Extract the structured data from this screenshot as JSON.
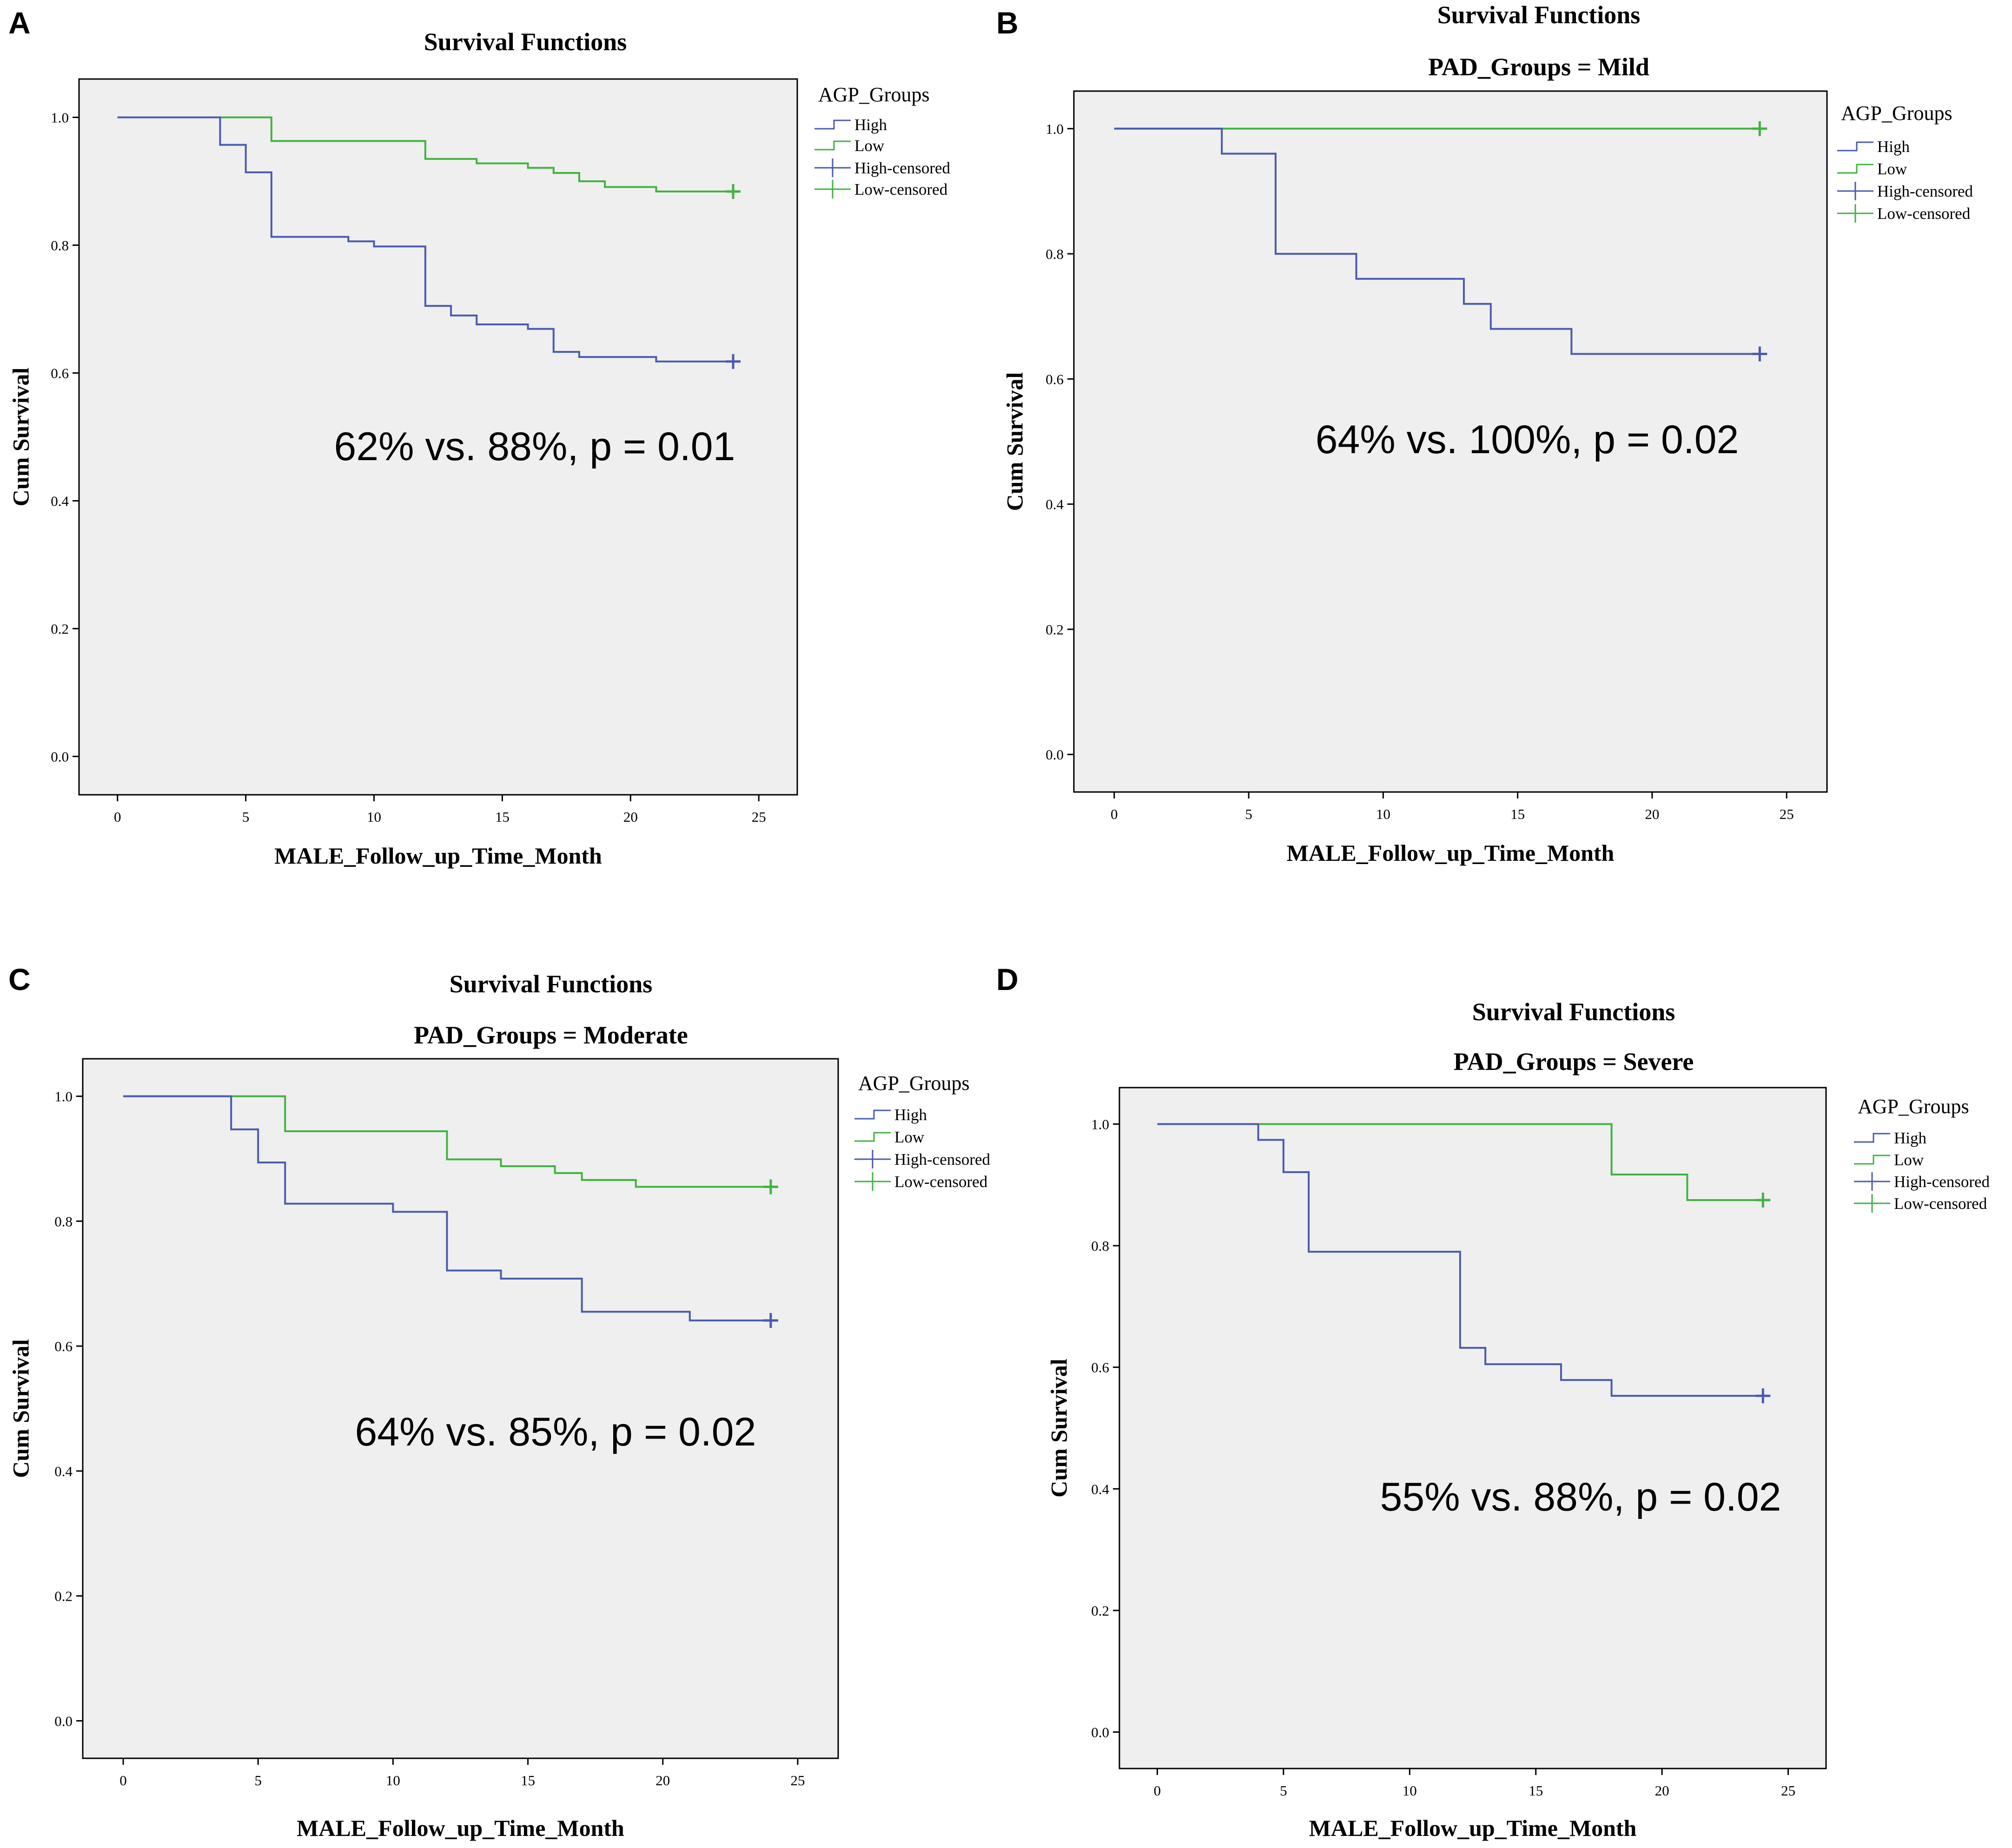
{
  "colors": {
    "high": "#4a5ab0",
    "low": "#3fb33f",
    "plot_bg": "#efefef",
    "axis": "#000000"
  },
  "chart_data": [
    {
      "panel": "A",
      "type": "line",
      "title": "Survival Functions",
      "subtitle": "",
      "xlabel": "MALE_Follow_up_Time_Month",
      "ylabel": "Cum Survival",
      "xlim": [
        -1.5,
        26.5
      ],
      "ylim": [
        -0.06,
        1.06
      ],
      "xticks": [
        "0",
        "5",
        "10",
        "15",
        "20",
        "25"
      ],
      "yticks": [
        "0.0",
        "0.2",
        "0.4",
        "0.6",
        "0.8",
        "1.0"
      ],
      "legend_title": "AGP_Groups",
      "legend": [
        "High",
        "Low",
        "High-censored",
        "Low-censored"
      ],
      "annotation": "62% vs. 88%, p = 0.01",
      "series": [
        {
          "name": "High",
          "color_key": "high",
          "steps": [
            [
              0,
              1.0
            ],
            [
              4,
              0.957
            ],
            [
              5,
              0.914
            ],
            [
              6,
              0.813
            ],
            [
              9,
              0.806
            ],
            [
              10,
              0.798
            ],
            [
              12,
              0.705
            ],
            [
              13,
              0.69
            ],
            [
              14,
              0.676
            ],
            [
              16,
              0.669
            ],
            [
              17,
              0.633
            ],
            [
              18,
              0.625
            ],
            [
              21,
              0.618
            ],
            [
              24,
              0.618
            ]
          ],
          "censor": [
            24,
            0.618
          ]
        },
        {
          "name": "Low",
          "color_key": "low",
          "steps": [
            [
              0,
              1.0
            ],
            [
              6,
              0.963
            ],
            [
              12,
              0.935
            ],
            [
              14,
              0.928
            ],
            [
              16,
              0.921
            ],
            [
              17,
              0.913
            ],
            [
              18,
              0.9
            ],
            [
              19,
              0.891
            ],
            [
              21,
              0.884
            ],
            [
              24,
              0.884
            ]
          ],
          "censor": [
            24,
            0.884
          ]
        }
      ]
    },
    {
      "panel": "B",
      "type": "line",
      "title": "Survival Functions",
      "subtitle": "PAD_Groups = Mild",
      "xlabel": "MALE_Follow_up_Time_Month",
      "ylabel": "Cum Survival",
      "xlim": [
        -1.5,
        26.5
      ],
      "ylim": [
        -0.06,
        1.06
      ],
      "xticks": [
        "0",
        "5",
        "10",
        "15",
        "20",
        "25"
      ],
      "yticks": [
        "0.0",
        "0.2",
        "0.4",
        "0.6",
        "0.8",
        "1.0"
      ],
      "legend_title": "AGP_Groups",
      "legend": [
        "High",
        "Low",
        "High-censored",
        "Low-censored"
      ],
      "annotation": "64% vs. 100%, p = 0.02",
      "series": [
        {
          "name": "High",
          "color_key": "high",
          "steps": [
            [
              0,
              1.0
            ],
            [
              4,
              0.96
            ],
            [
              6,
              0.8
            ],
            [
              9,
              0.76
            ],
            [
              13,
              0.72
            ],
            [
              14,
              0.68
            ],
            [
              17,
              0.64
            ],
            [
              24,
              0.64
            ]
          ],
          "censor": [
            24,
            0.64
          ]
        },
        {
          "name": "Low",
          "color_key": "low",
          "steps": [
            [
              0,
              1.0
            ],
            [
              24,
              1.0
            ]
          ],
          "censor": [
            24,
            1.0
          ]
        }
      ]
    },
    {
      "panel": "C",
      "type": "line",
      "title": "Survival Functions",
      "subtitle": "PAD_Groups = Moderate",
      "xlabel": "MALE_Follow_up_Time_Month",
      "ylabel": "Cum Survival",
      "xlim": [
        -1.5,
        26.5
      ],
      "ylim": [
        -0.06,
        1.06
      ],
      "xticks": [
        "0",
        "5",
        "10",
        "15",
        "20",
        "25"
      ],
      "yticks": [
        "0.0",
        "0.2",
        "0.4",
        "0.6",
        "0.8",
        "1.0"
      ],
      "legend_title": "AGP_Groups",
      "legend": [
        "High",
        "Low",
        "High-censored",
        "Low-censored"
      ],
      "annotation": "64% vs. 85%, p = 0.02",
      "series": [
        {
          "name": "High",
          "color_key": "high",
          "steps": [
            [
              0,
              1.0
            ],
            [
              4,
              0.947
            ],
            [
              5,
              0.894
            ],
            [
              6,
              0.828
            ],
            [
              10,
              0.815
            ],
            [
              12,
              0.721
            ],
            [
              14,
              0.708
            ],
            [
              17,
              0.655
            ],
            [
              21,
              0.641
            ],
            [
              24,
              0.641
            ]
          ],
          "censor": [
            24,
            0.641
          ]
        },
        {
          "name": "Low",
          "color_key": "low",
          "steps": [
            [
              0,
              1.0
            ],
            [
              6,
              0.944
            ],
            [
              12,
              0.899
            ],
            [
              14,
              0.888
            ],
            [
              16,
              0.877
            ],
            [
              17,
              0.866
            ],
            [
              19,
              0.855
            ],
            [
              24,
              0.855
            ]
          ],
          "censor": [
            24,
            0.855
          ]
        }
      ]
    },
    {
      "panel": "D",
      "type": "line",
      "title": "Survival Functions",
      "subtitle": "PAD_Groups = Severe",
      "xlabel": "MALE_Follow_up_Time_Month",
      "ylabel": "Cum Survival",
      "xlim": [
        -1.5,
        26.5
      ],
      "ylim": [
        -0.06,
        1.06
      ],
      "xticks": [
        "0",
        "5",
        "10",
        "15",
        "20",
        "25"
      ],
      "yticks": [
        "0.0",
        "0.2",
        "0.4",
        "0.6",
        "0.8",
        "1.0"
      ],
      "legend_title": "AGP_Groups",
      "legend": [
        "High",
        "Low",
        "High-censored",
        "Low-censored"
      ],
      "annotation": "55% vs. 88%, p = 0.02",
      "series": [
        {
          "name": "High",
          "color_key": "high",
          "steps": [
            [
              0,
              1.0
            ],
            [
              4,
              0.974
            ],
            [
              5,
              0.921
            ],
            [
              6,
              0.79
            ],
            [
              12,
              0.632
            ],
            [
              13,
              0.605
            ],
            [
              16,
              0.579
            ],
            [
              18,
              0.553
            ],
            [
              24,
              0.553
            ]
          ],
          "censor": [
            24,
            0.553
          ]
        },
        {
          "name": "Low",
          "color_key": "low",
          "steps": [
            [
              0,
              1.0
            ],
            [
              18,
              0.917
            ],
            [
              21,
              0.875
            ],
            [
              24,
              0.875
            ]
          ],
          "censor": [
            24,
            0.875
          ]
        }
      ]
    }
  ]
}
